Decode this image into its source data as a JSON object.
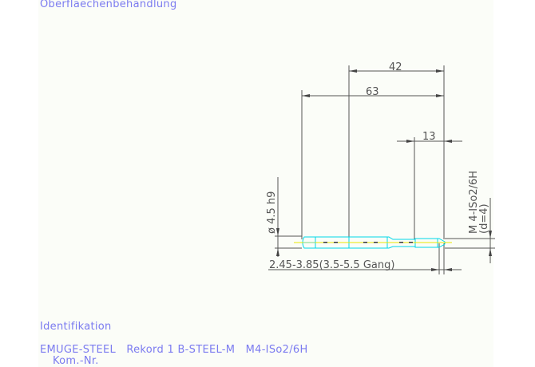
{
  "header": {
    "surface_treatment": "Oberflaechenbehandlung"
  },
  "drawing": {
    "dim_overall": "42",
    "dim_length": "63",
    "dim_thread": "13",
    "dim_shank_diameter": "ø 4.5 h9",
    "dim_core": "2.45-3.85(3.5-5.5 Gang)",
    "thread_spec": "M 4-ISo2/6H",
    "thread_diameter": "(d=4)",
    "colors": {
      "outline": "#00d8e8",
      "centerline": "#e8e800",
      "dimension": "#555555",
      "text": "#7b7bf0"
    }
  },
  "footer": {
    "identification_label": "Identifikation",
    "product": "EMUGE-STEEL   Rekord 1 B-STEEL-M   M4-ISo2/6H",
    "kom_nr": "Kom.-Nr."
  }
}
